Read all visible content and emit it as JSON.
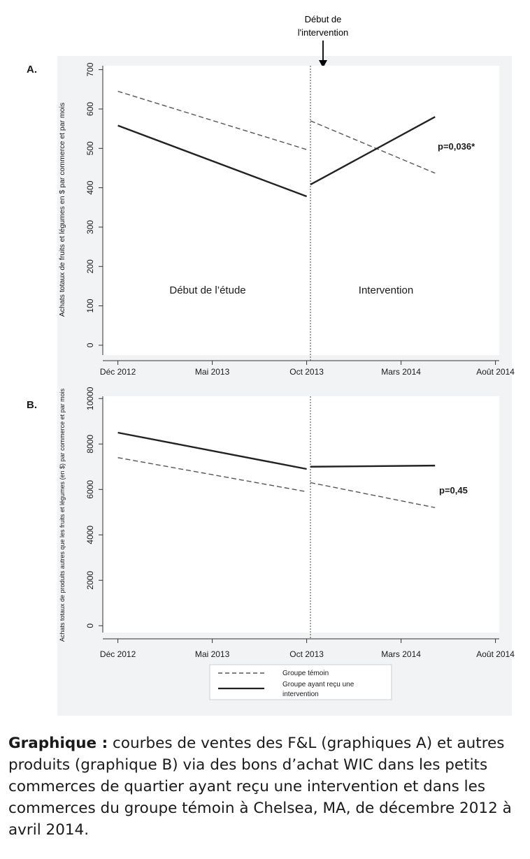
{
  "intervention_marker": {
    "line1": "Début de",
    "line2": "l'intervention"
  },
  "colors": {
    "panel_background": "#f2f3f5",
    "plot_background": "#ffffff",
    "line": "#222222",
    "text": "#1a1a1a"
  },
  "legend": {
    "items": [
      {
        "label": "Groupe témoin",
        "style": "dashed"
      },
      {
        "label_lines": [
          "Groupe ayant reçu une",
          "intervention"
        ],
        "style": "solid"
      }
    ]
  },
  "caption": {
    "bold": "Graphique :",
    "text": " courbes de ventes des F&L (graphiques A) et autres produits (graphique B) via des bons d’achat WIC dans les petits commerces de quartier ayant reçu une intervention et dans les commerces du groupe témoin à Chelsea, MA, de décembre 2012 à avril 2014."
  },
  "chart_data": [
    {
      "type": "line",
      "panel_label": "A.",
      "title": "",
      "xlabel": "",
      "ylabel": "Achats totaux de fruits et légumes en $ par commerce et par mois",
      "x_ticks": [
        "Déc 2012",
        "Mai 2013",
        "Oct 2013",
        "Mars 2014",
        "Août 2014"
      ],
      "x_tick_months": [
        0,
        5,
        10,
        15,
        20
      ],
      "xlim": [
        -0.8,
        20.2
      ],
      "y_ticks": [
        0,
        100,
        200,
        300,
        400,
        500,
        600,
        700
      ],
      "ylim": [
        -25,
        710
      ],
      "intervention_month": 10.2,
      "region_labels": [
        "Début de l’étude",
        "Intervention"
      ],
      "annotation": "p=0,036*",
      "series": [
        {
          "style": "dashed",
          "segments": [
            [
              [
                0,
                645
              ],
              [
                10,
                497
              ]
            ],
            [
              [
                10.2,
                570
              ],
              [
                16.8,
                437
              ]
            ]
          ]
        },
        {
          "style": "solid",
          "segments": [
            [
              [
                0,
                558
              ],
              [
                10,
                378
              ]
            ],
            [
              [
                10.2,
                408
              ],
              [
                16.8,
                580
              ]
            ]
          ]
        }
      ]
    },
    {
      "type": "line",
      "panel_label": "B.",
      "title": "",
      "xlabel": "",
      "ylabel": "Achats totaux de produits autres que les fruits et légumes (en $) par commerce et par mois",
      "x_ticks": [
        "Déc 2012",
        "Mai 2013",
        "Oct 2013",
        "Mars 2014",
        "Août 2014"
      ],
      "x_tick_months": [
        0,
        5,
        10,
        15,
        20
      ],
      "xlim": [
        -0.8,
        20.2
      ],
      "y_ticks": [
        0,
        2000,
        4000,
        6000,
        8000,
        10000
      ],
      "ylim": [
        -300,
        10100
      ],
      "intervention_month": 10.2,
      "annotation": "p=0,45",
      "series": [
        {
          "style": "dashed",
          "segments": [
            [
              [
                0,
                7400
              ],
              [
                10,
                5900
              ]
            ],
            [
              [
                10.2,
                6300
              ],
              [
                16.8,
                5200
              ]
            ]
          ]
        },
        {
          "style": "solid",
          "segments": [
            [
              [
                0,
                8500
              ],
              [
                10,
                6900
              ]
            ],
            [
              [
                10.2,
                7000
              ],
              [
                16.8,
                7050
              ]
            ]
          ]
        }
      ]
    }
  ]
}
